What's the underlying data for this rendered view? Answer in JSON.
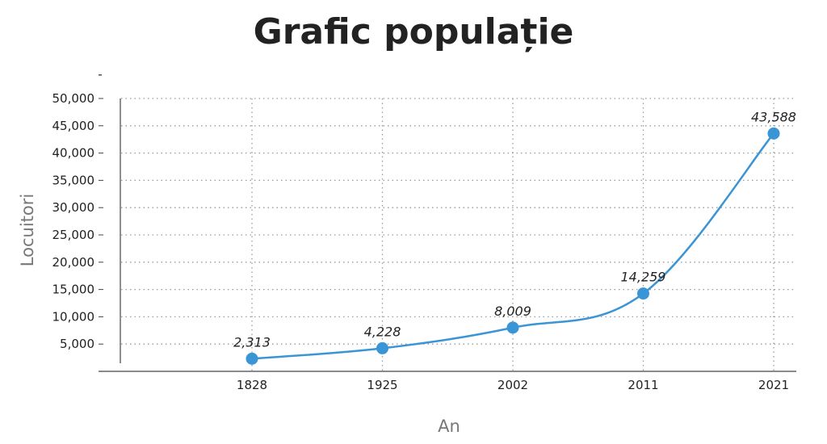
{
  "chart_data": {
    "type": "line",
    "title": "Grafic populație",
    "xlabel": "An",
    "ylabel": "Locuitori",
    "categories": [
      "1828",
      "1925",
      "2002",
      "2011",
      "2021"
    ],
    "series": [
      {
        "values": [
          2313,
          4228,
          8009,
          14259,
          43588
        ],
        "labels": [
          "2,313",
          "4,228",
          "8,009",
          "14,259",
          "43,588"
        ]
      }
    ],
    "y_ticks": [
      "5,000",
      "10,000",
      "15,000",
      "20,000",
      "25,000",
      "30,000",
      "35,000",
      "40,000",
      "45,000",
      "50,000"
    ],
    "y_tick_values": [
      5000,
      10000,
      15000,
      20000,
      25000,
      30000,
      35000,
      40000,
      45000,
      50000
    ],
    "ylim": [
      0,
      50000
    ],
    "y_top_tick_label": "-",
    "grid": true,
    "line_color": "#3a95d6",
    "marker_color": "#3a95d6",
    "legend": "none"
  }
}
